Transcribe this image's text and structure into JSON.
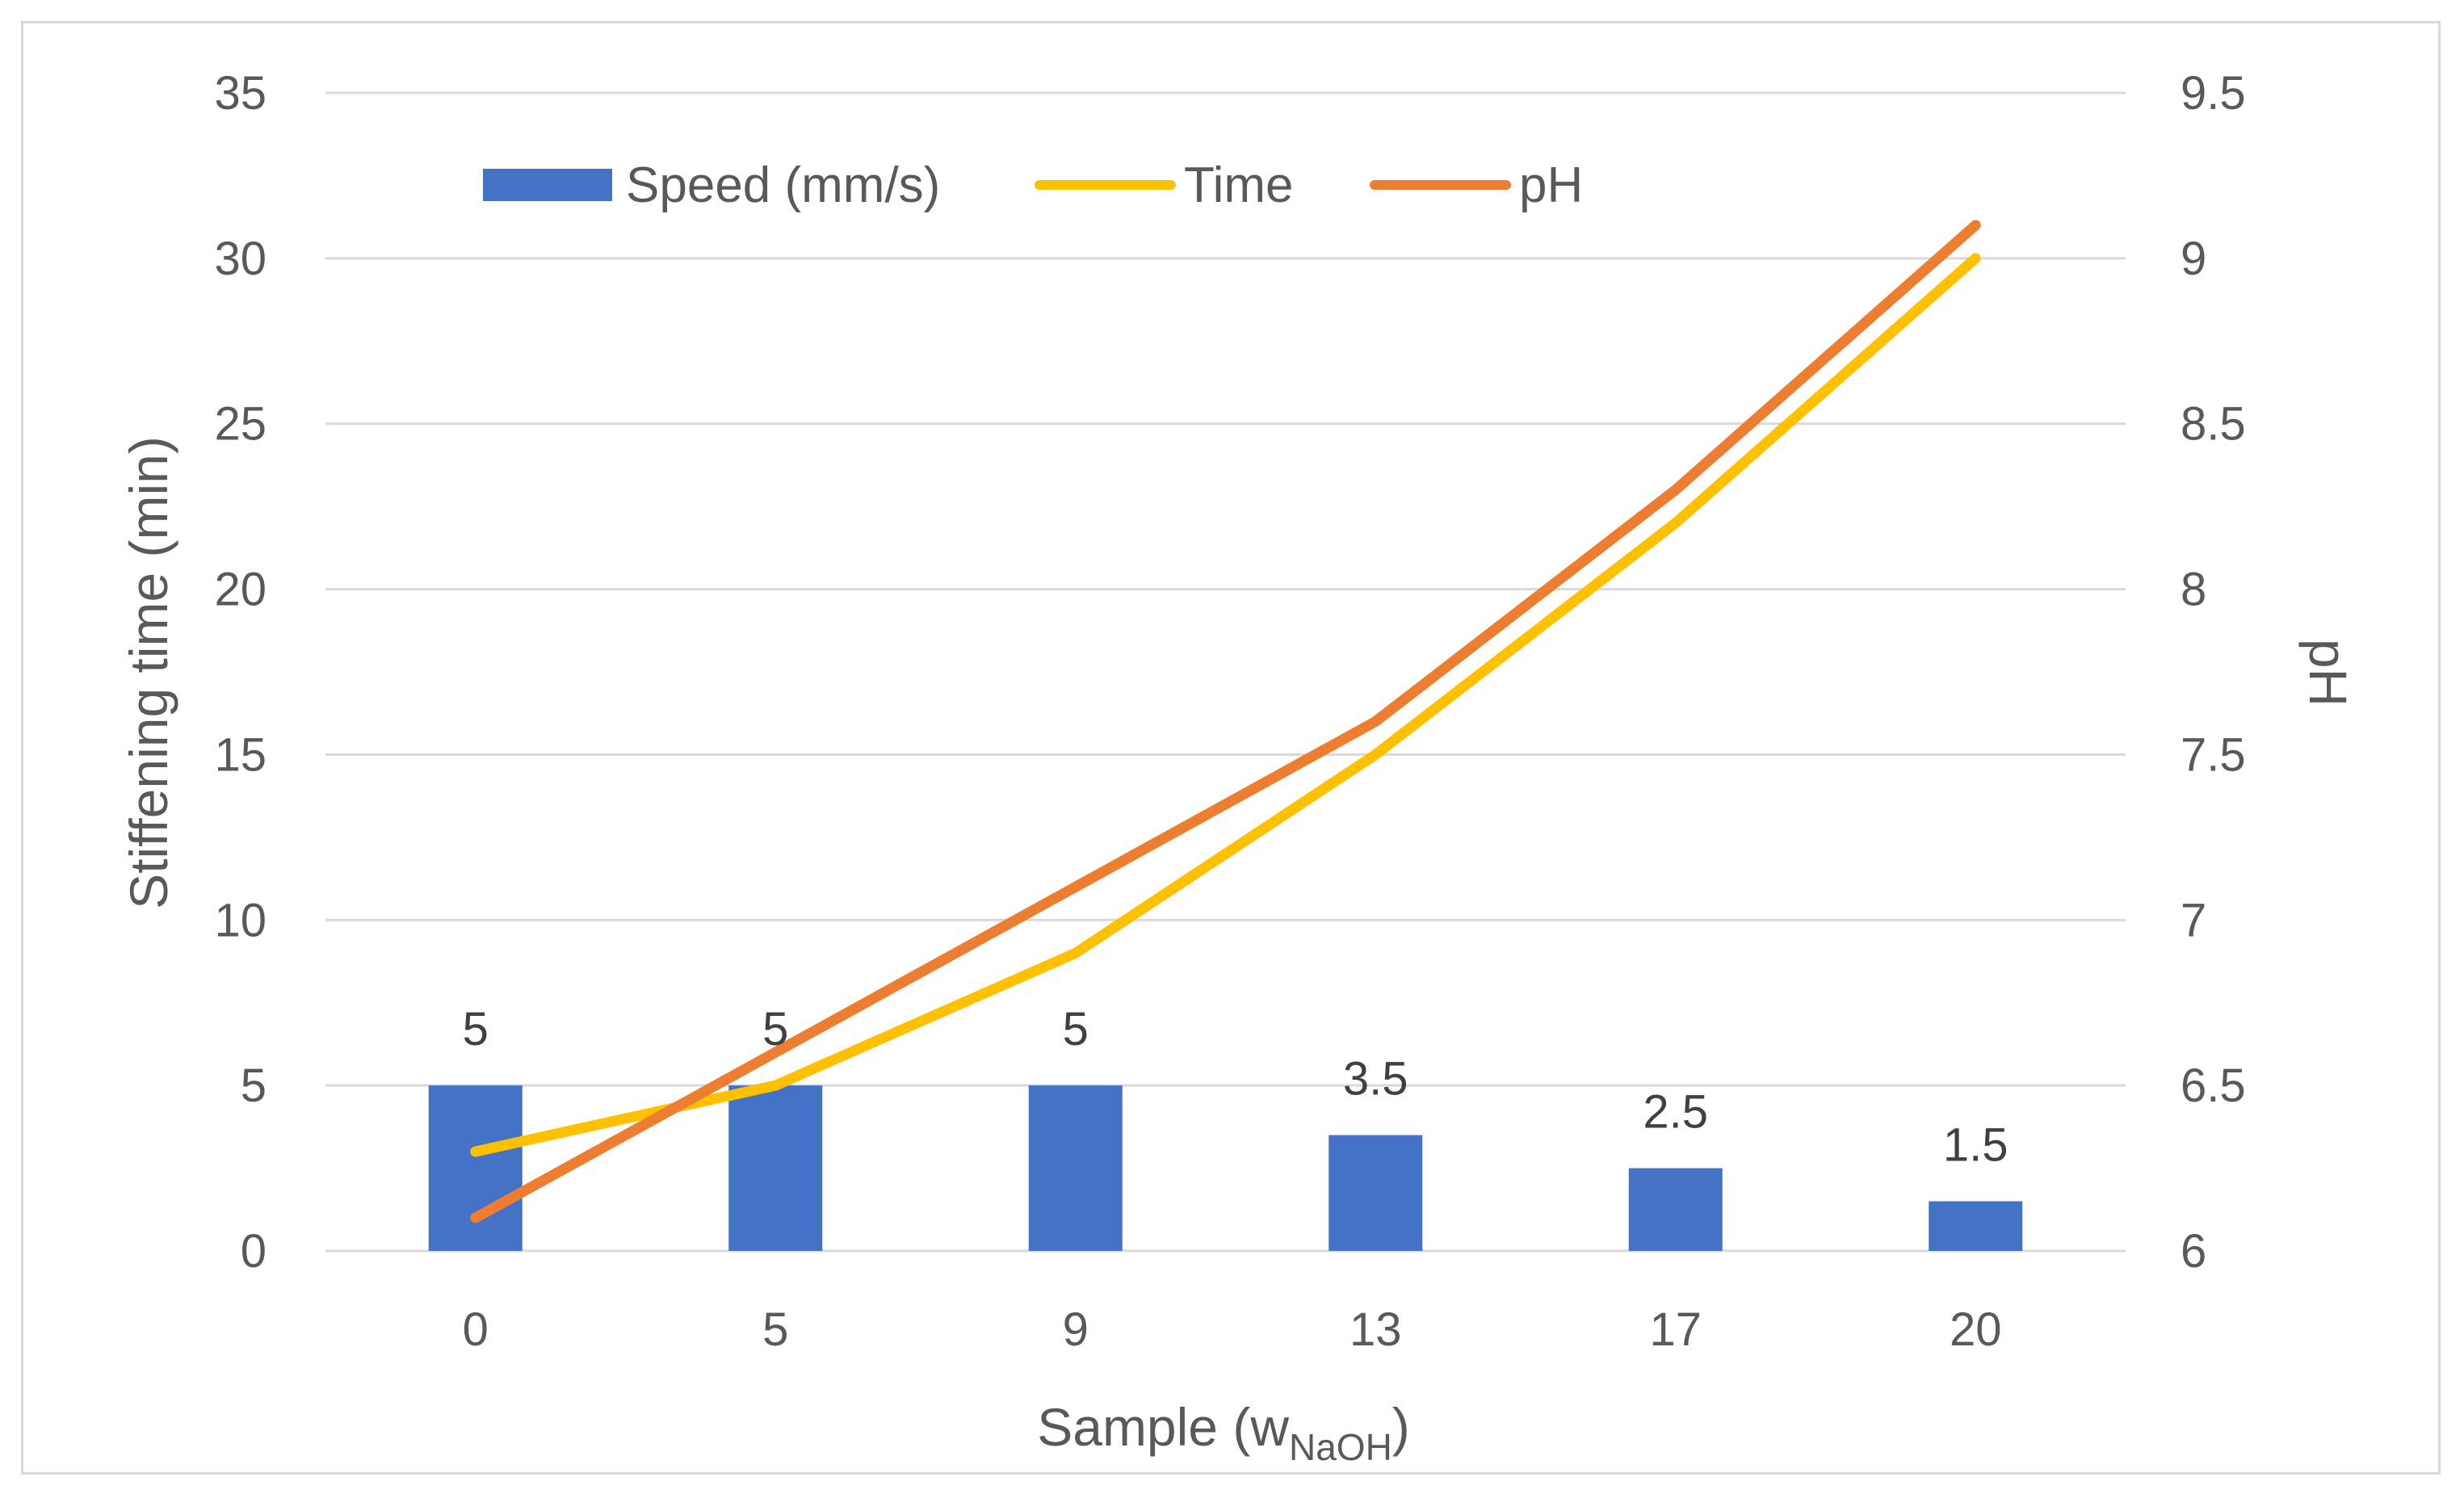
{
  "chart_data": {
    "type": "bar+line",
    "title": "",
    "categories": [
      "0",
      "5",
      "9",
      "13",
      "17",
      "20"
    ],
    "series": [
      {
        "name": "Speed (mm/s)",
        "kind": "bar",
        "axis": "left",
        "values": [
          5,
          5,
          5,
          3.5,
          2.5,
          1.5
        ],
        "color": "#4472c4"
      },
      {
        "name": "Time",
        "kind": "line",
        "axis": "left",
        "values": [
          3,
          5,
          9,
          15,
          22,
          30
        ],
        "color": "#ffc000"
      },
      {
        "name": "pH",
        "kind": "line",
        "axis": "right",
        "values": [
          6.1,
          6.6,
          7.1,
          7.6,
          8.3,
          9.1
        ],
        "color": "#ed7d31"
      }
    ],
    "data_labels": [
      "5",
      "5",
      "5",
      "3.5",
      "2.5",
      "1.5"
    ],
    "xlabel_main": "Sample (w",
    "xlabel_sub": "NaOH",
    "xlabel_close": ")",
    "ylabel": "Stiffening time (min)",
    "ylabel_right": "pH",
    "ylim": [
      0,
      35
    ],
    "yticks": [
      "0",
      "5",
      "10",
      "15",
      "20",
      "25",
      "30",
      "35"
    ],
    "ylim_right": [
      6,
      9.5
    ],
    "yticks_right": [
      "6",
      "6.5",
      "7",
      "7.5",
      "8",
      "8.5",
      "9",
      "9.5"
    ],
    "grid": true,
    "legend_position": "top-left"
  }
}
